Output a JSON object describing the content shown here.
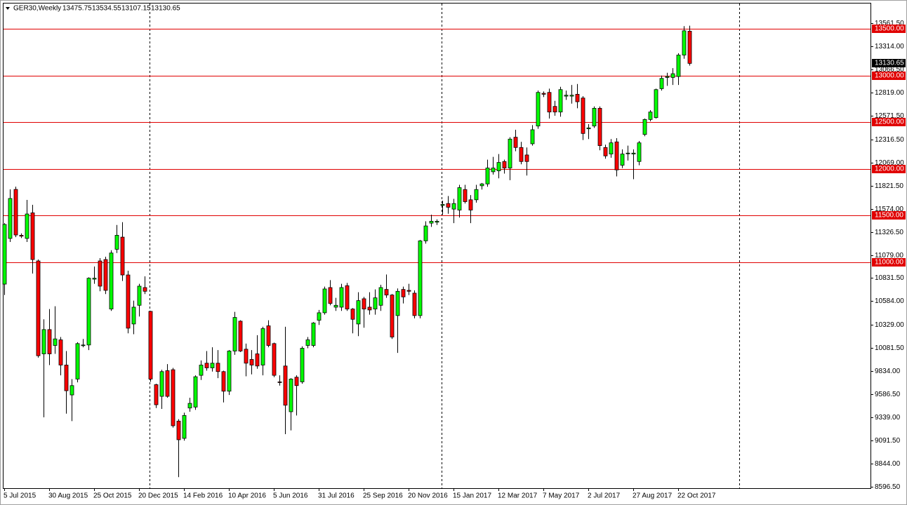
{
  "chart_data": {
    "type": "candlestick",
    "title": "GER30,Weekly",
    "categories": [
      "5 Jul 2015",
      null,
      null,
      null,
      null,
      null,
      null,
      null,
      "30 Aug 2015",
      null,
      null,
      null,
      null,
      null,
      null,
      null,
      "25 Oct 2015",
      null,
      null,
      null,
      null,
      null,
      null,
      null,
      "20 Dec 2015",
      null,
      null,
      null,
      null,
      null,
      null,
      null,
      "14 Feb 2016",
      null,
      null,
      null,
      null,
      null,
      null,
      null,
      "10 Apr 2016",
      null,
      null,
      null,
      null,
      null,
      null,
      null,
      "5 Jun 2016",
      null,
      null,
      null,
      null,
      null,
      null,
      null,
      "31 Jul 2016",
      null,
      null,
      null,
      null,
      null,
      null,
      null,
      "25 Sep 2016",
      null,
      null,
      null,
      null,
      null,
      null,
      null,
      "20 Nov 2016",
      null,
      null,
      null,
      null,
      null,
      null,
      null,
      "15 Jan 2017",
      null,
      null,
      null,
      null,
      null,
      null,
      null,
      "12 Mar 2017",
      null,
      null,
      null,
      null,
      null,
      null,
      null,
      "7 May 2017",
      null,
      null,
      null,
      null,
      null,
      null,
      null,
      "2 Jul 2017",
      null,
      null,
      null,
      null,
      null,
      null,
      null,
      "27 Aug 2017",
      null,
      null,
      null,
      null,
      null,
      null,
      null,
      "22 Oct 2017",
      null,
      null
    ],
    "open": [
      10767,
      11256,
      11781,
      11290,
      11256,
      11530,
      11015,
      10020,
      10280,
      10110,
      10170,
      9900,
      9580,
      9750,
      10110,
      10115,
      10820,
      11015,
      11030,
      10500,
      11140,
      11270,
      10865,
      10340,
      10540,
      10730,
      10475,
      9690,
      9565,
      9840,
      9850,
      9300,
      9115,
      9440,
      9450,
      9790,
      9920,
      9870,
      9920,
      9830,
      9620,
      10050,
      10370,
      10070,
      9960,
      10020,
      9900,
      10320,
      10130,
      9720,
      9890,
      9400,
      9770,
      9720,
      10110,
      10110,
      10380,
      10460,
      10730,
      10520,
      10520,
      10750,
      10500,
      10340,
      10610,
      10520,
      10500,
      10540,
      10710,
      10650,
      10430,
      10710,
      10700,
      10670,
      10430,
      11230,
      11420,
      11430,
      11610,
      11630,
      11570,
      11560,
      11780,
      11670,
      11670,
      11820,
      11840,
      11970,
      11980,
      12080,
      12010,
      12340,
      12230,
      12150,
      12270,
      12460,
      12810,
      12820,
      12670,
      12610,
      12780,
      12780,
      12800,
      12760,
      12430,
      12460,
      12650,
      12230,
      12160,
      12290,
      12040,
      12170,
      12160,
      12080,
      12370,
      12530,
      12550,
      12860,
      12980,
      12980,
      12990,
      13220,
      13475.75
    ],
    "high": [
      11420,
      11781,
      11811,
      11310,
      11669,
      11616,
      11030,
      10390,
      10500,
      10530,
      10200,
      10050,
      9750,
      10145,
      10180,
      10840,
      10955,
      11045,
      11060,
      11130,
      11400,
      11430,
      10910,
      10590,
      10770,
      10850,
      10480,
      9700,
      9850,
      9910,
      9870,
      9320,
      9390,
      9550,
      9790,
      9950,
      10050,
      10090,
      10060,
      9840,
      10060,
      10470,
      10380,
      10130,
      10060,
      10220,
      10310,
      10380,
      10140,
      9790,
      10310,
      9760,
      9790,
      10100,
      10200,
      10360,
      10490,
      10740,
      10810,
      10620,
      10770,
      10780,
      10510,
      10680,
      10630,
      10680,
      10710,
      10760,
      10870,
      10660,
      10720,
      10740,
      10770,
      10700,
      11240,
      11440,
      11510,
      11460,
      11660,
      11710,
      11680,
      11830,
      11830,
      11720,
      11830,
      11850,
      12100,
      12130,
      12160,
      12100,
      12340,
      12420,
      12290,
      12230,
      12470,
      12840,
      12830,
      12860,
      12730,
      12880,
      12840,
      12900,
      12910,
      12780,
      12480,
      12670,
      12670,
      12260,
      12320,
      12330,
      12210,
      12250,
      12210,
      12300,
      12540,
      12630,
      12860,
      13000,
      13030,
      13080,
      13240,
      13530,
      13534.55
    ],
    "low": [
      10650,
      11218,
      11270,
      11260,
      11218,
      10880,
      9980,
      9340,
      9900,
      10020,
      9790,
      9380,
      9300,
      9715,
      10090,
      10060,
      10770,
      10690,
      10660,
      10480,
      11100,
      10800,
      10240,
      10230,
      10420,
      10660,
      9720,
      9440,
      9430,
      9550,
      9230,
      8700,
      9090,
      9400,
      9420,
      9740,
      9840,
      9830,
      9760,
      9500,
      9580,
      10010,
      10040,
      9780,
      9800,
      9860,
      9790,
      10090,
      9770,
      9680,
      9160,
      9200,
      9360,
      9700,
      10080,
      10090,
      10330,
      10440,
      10540,
      10480,
      10480,
      10480,
      10240,
      10210,
      10300,
      10440,
      10440,
      10480,
      10620,
      10180,
      10030,
      10560,
      10650,
      10400,
      10400,
      11200,
      11380,
      11400,
      11510,
      11520,
      11420,
      11480,
      11630,
      11420,
      11640,
      11780,
      11810,
      11940,
      11900,
      11950,
      11880,
      12190,
      12050,
      11930,
      12250,
      12430,
      12770,
      12540,
      12570,
      12560,
      12740,
      12700,
      12650,
      12310,
      12320,
      12440,
      12200,
      12110,
      12120,
      11920,
      12010,
      12090,
      11890,
      12040,
      12350,
      12510,
      12540,
      12840,
      12890,
      12900,
      12900,
      13180,
      13107.15
    ],
    "close": [
      11406,
      11684,
      11293,
      11280,
      11518,
      11030,
      10000,
      10280,
      10020,
      10180,
      9900,
      9625,
      9680,
      10130,
      10115,
      10830,
      10830,
      10745,
      10700,
      11100,
      11290,
      10865,
      10295,
      10520,
      10745,
      10690,
      9750,
      9475,
      9830,
      9565,
      9250,
      9100,
      9360,
      9490,
      9775,
      9900,
      9870,
      9920,
      9830,
      9620,
      10050,
      10410,
      10050,
      9920,
      9900,
      9890,
      10290,
      10110,
      9790,
      9715,
      9470,
      9750,
      9680,
      10080,
      10170,
      10350,
      10460,
      10715,
      10560,
      10540,
      10730,
      10500,
      10390,
      10590,
      10500,
      10490,
      10620,
      10730,
      10650,
      10200,
      10690,
      10630,
      10690,
      10430,
      11230,
      11390,
      11440,
      11440,
      11620,
      11590,
      11630,
      11800,
      11650,
      11560,
      11780,
      11840,
      12010,
      12010,
      12070,
      12010,
      12320,
      12230,
      12080,
      12080,
      12420,
      12820,
      12800,
      12610,
      12610,
      12850,
      12790,
      12790,
      12720,
      12380,
      12440,
      12650,
      12250,
      12140,
      12280,
      11990,
      12160,
      12170,
      12170,
      12280,
      12530,
      12610,
      12850,
      12970,
      12990,
      13020,
      13220,
      13480,
      13130.65
    ],
    "up_color": "#00ff00",
    "down_color": "#ff0000",
    "wick_color": "#000000",
    "level_color": "#e00000",
    "ylim": [
      8574,
      13772
    ],
    "yticks": [
      {
        "value": 13561.5,
        "label": "13561.50"
      },
      {
        "value": 13314,
        "label": "13314.00"
      },
      {
        "value": 13066.5,
        "label": "13066.50"
      },
      {
        "value": 12819,
        "label": "12819.00"
      },
      {
        "value": 12571.5,
        "label": "12571.50"
      },
      {
        "value": 12316.5,
        "label": "12316.50"
      },
      {
        "value": 12069,
        "label": "12069.00"
      },
      {
        "value": 11821.5,
        "label": "11821.50"
      },
      {
        "value": 11574,
        "label": "11574.00"
      },
      {
        "value": 11326.5,
        "label": "11326.50"
      },
      {
        "value": 11079,
        "label": "11079.00"
      },
      {
        "value": 10831.5,
        "label": "10831.50"
      },
      {
        "value": 10584,
        "label": "10584.00"
      },
      {
        "value": 10329,
        "label": "10329.00"
      },
      {
        "value": 10081.5,
        "label": "10081.50"
      },
      {
        "value": 9834,
        "label": "9834.00"
      },
      {
        "value": 9586.5,
        "label": "9586.50"
      },
      {
        "value": 9339,
        "label": "9339.00"
      },
      {
        "value": 9091.5,
        "label": "9091.50"
      },
      {
        "value": 8844,
        "label": "8844.00"
      },
      {
        "value": 8596.5,
        "label": "8596.50"
      }
    ],
    "levels": [
      {
        "value": 13500,
        "label": "13500.00"
      },
      {
        "value": 13000,
        "label": "13000.00"
      },
      {
        "value": 12500,
        "label": "12500.00"
      },
      {
        "value": 12000,
        "label": "12000.00"
      },
      {
        "value": 11500,
        "label": "11500.00"
      },
      {
        "value": 11000,
        "label": "11000.00"
      }
    ]
  }
}
